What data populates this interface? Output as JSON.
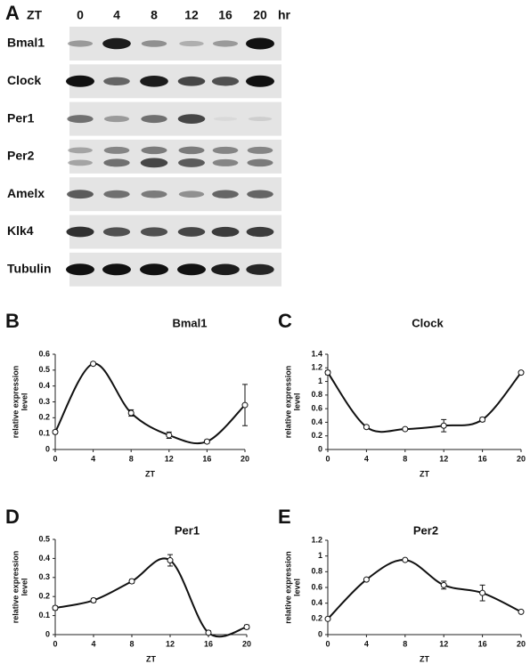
{
  "blot": {
    "panel": "A",
    "time_prefix": "ZT",
    "times": [
      "0",
      "4",
      "8",
      "12",
      "16",
      "20"
    ],
    "time_unit": "hr",
    "rows": [
      "Bmal1",
      "Clock",
      "Per1",
      "Per2",
      "Amelx",
      "Klk4",
      "Tubulin"
    ]
  },
  "chart_data": [
    {
      "type": "line",
      "panel": "B",
      "title": "Bmal1",
      "y_label": [
        "relative expression",
        "level"
      ],
      "x_label": "ZT",
      "x": [
        0,
        4,
        8,
        12,
        16,
        20
      ],
      "values": [
        0.11,
        0.54,
        0.23,
        0.09,
        0.05,
        0.28
      ],
      "errors": [
        0.01,
        0.01,
        0.02,
        0.02,
        0.01,
        0.13
      ],
      "xlim": [
        0,
        20
      ],
      "xticks": [
        0,
        4,
        8,
        12,
        16,
        20
      ],
      "ylim": [
        0,
        0.6
      ],
      "yticks": [
        0,
        0.1,
        0.2,
        0.3,
        0.4,
        0.5,
        0.6
      ]
    },
    {
      "type": "line",
      "panel": "C",
      "title": "Clock",
      "y_label": [
        "relative expression",
        "level"
      ],
      "x_label": "ZT",
      "x": [
        0,
        4,
        8,
        12,
        16,
        20
      ],
      "values": [
        1.13,
        0.33,
        0.3,
        0.35,
        0.44,
        1.13
      ],
      "errors": [
        0.03,
        0.02,
        0.02,
        0.09,
        0.03,
        0.02
      ],
      "xlim": [
        0,
        20
      ],
      "xticks": [
        0,
        4,
        8,
        12,
        16,
        20
      ],
      "ylim": [
        0,
        1.4
      ],
      "yticks": [
        0,
        0.2,
        0.4,
        0.6,
        0.8,
        1,
        1.2,
        1.4
      ]
    },
    {
      "type": "line",
      "panel": "D",
      "title": "Per1",
      "y_label": [
        "relative expression",
        "level"
      ],
      "x_label": "ZT",
      "x": [
        0,
        4,
        8,
        12,
        16,
        20
      ],
      "values": [
        0.14,
        0.18,
        0.28,
        0.39,
        0.01,
        0.04
      ],
      "errors": [
        0.01,
        0.01,
        0.01,
        0.03,
        0.01,
        0.01
      ],
      "xlim": [
        0,
        20
      ],
      "xticks": [
        0,
        4,
        8,
        12,
        16,
        20
      ],
      "ylim": [
        0,
        0.5
      ],
      "yticks": [
        0,
        0.1,
        0.2,
        0.3,
        0.4,
        0.5
      ]
    },
    {
      "type": "line",
      "panel": "E",
      "title": "Per2",
      "y_label": [
        "relative expression",
        "level"
      ],
      "x_label": "ZT",
      "x": [
        0,
        4,
        8,
        12,
        16,
        20
      ],
      "values": [
        0.2,
        0.7,
        0.95,
        0.63,
        0.53,
        0.29
      ],
      "errors": [
        0.01,
        0.01,
        0.01,
        0.05,
        0.1,
        0.01
      ],
      "xlim": [
        0,
        20
      ],
      "xticks": [
        0,
        4,
        8,
        12,
        16,
        20
      ],
      "ylim": [
        0,
        1.2
      ],
      "yticks": [
        0,
        0.2,
        0.4,
        0.6,
        0.8,
        1,
        1.2
      ]
    }
  ]
}
